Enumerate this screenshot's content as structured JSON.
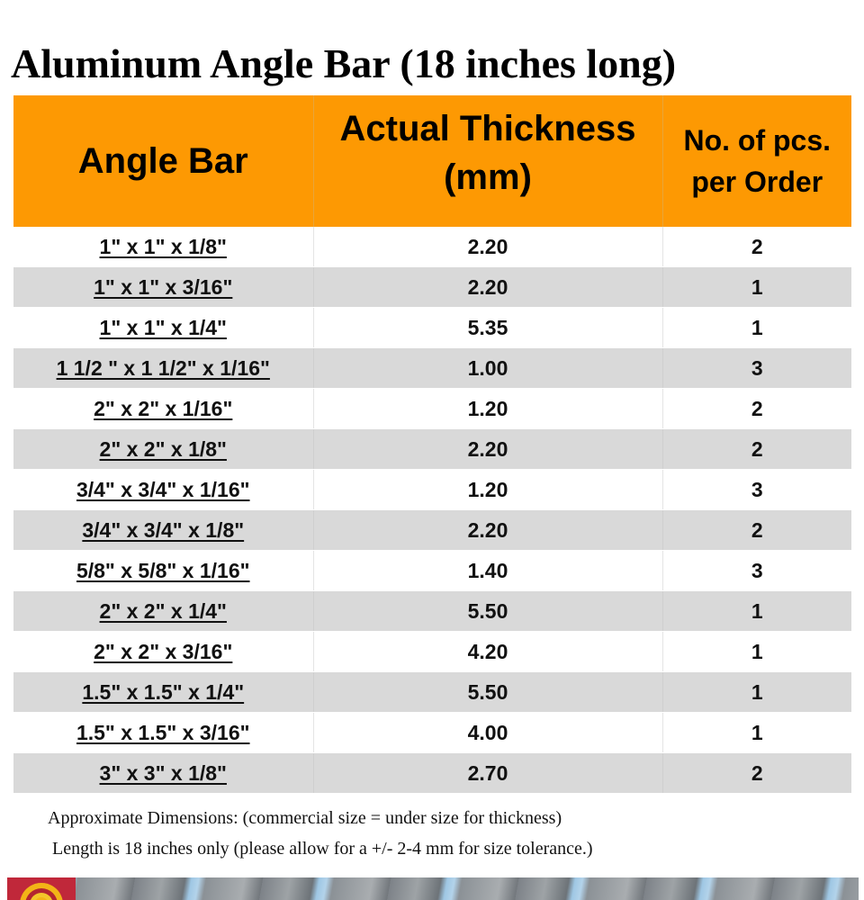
{
  "title": "Aluminum Angle Bar (18 inches long)",
  "table": {
    "headers": {
      "angle_bar": "Angle Bar",
      "thickness_line1": "Actual Thickness",
      "thickness_line2": "(mm)",
      "pcs_line1": "No. of pcs.",
      "pcs_line2": "per Order"
    },
    "rows": [
      {
        "size": "1\" x 1\" x 1/8\"",
        "thickness": "2.20",
        "pcs": "2"
      },
      {
        "size": "1\" x 1\" x 3/16\"",
        "thickness": "2.20",
        "pcs": "1"
      },
      {
        "size": "1\" x 1\" x 1/4\"",
        "thickness": "5.35",
        "pcs": "1"
      },
      {
        "size": "1 1/2 \" x 1 1/2\" x 1/16\"",
        "thickness": "1.00",
        "pcs": "3"
      },
      {
        "size": "2\" x 2\" x 1/16\"",
        "thickness": "1.20",
        "pcs": "2"
      },
      {
        "size": "2\" x 2\" x 1/8\"",
        "thickness": "2.20",
        "pcs": "2"
      },
      {
        "size": "3/4\" x 3/4\" x 1/16\"",
        "thickness": "1.20",
        "pcs": "3"
      },
      {
        "size": "3/4\" x 3/4\" x 1/8\"",
        "thickness": "2.20",
        "pcs": "2"
      },
      {
        "size": "5/8\" x 5/8\" x 1/16\"",
        "thickness": "1.40",
        "pcs": "3"
      },
      {
        "size": "2\" x 2\" x 1/4\"",
        "thickness": "5.50",
        "pcs": "1"
      },
      {
        "size": "2\" x 2\" x 3/16\"",
        "thickness": "4.20",
        "pcs": "1"
      },
      {
        "size": "1.5\" x 1.5\" x 1/4\"",
        "thickness": "5.50",
        "pcs": "1"
      },
      {
        "size": "1.5\" x 1.5\" x 3/16\"",
        "thickness": "4.00",
        "pcs": "1"
      },
      {
        "size": "3\" x 3\" x 1/8\"",
        "thickness": "2.70",
        "pcs": "2"
      }
    ]
  },
  "notes": {
    "line1": "Approximate Dimensions: (commercial size = under size for thickness)",
    "line2": "Length is 18 inches only (please allow for a +/- 2-4 mm for size tolerance.)"
  },
  "colors": {
    "header_bg": "#fd9903",
    "alt_row_bg": "#d9d9d9",
    "logo_red": "#c0283a",
    "logo_yellow": "#f3b417"
  },
  "images": {
    "bottom_photo": "aluminum-angle-bars-photo",
    "logo": "brand-logo-icon"
  }
}
